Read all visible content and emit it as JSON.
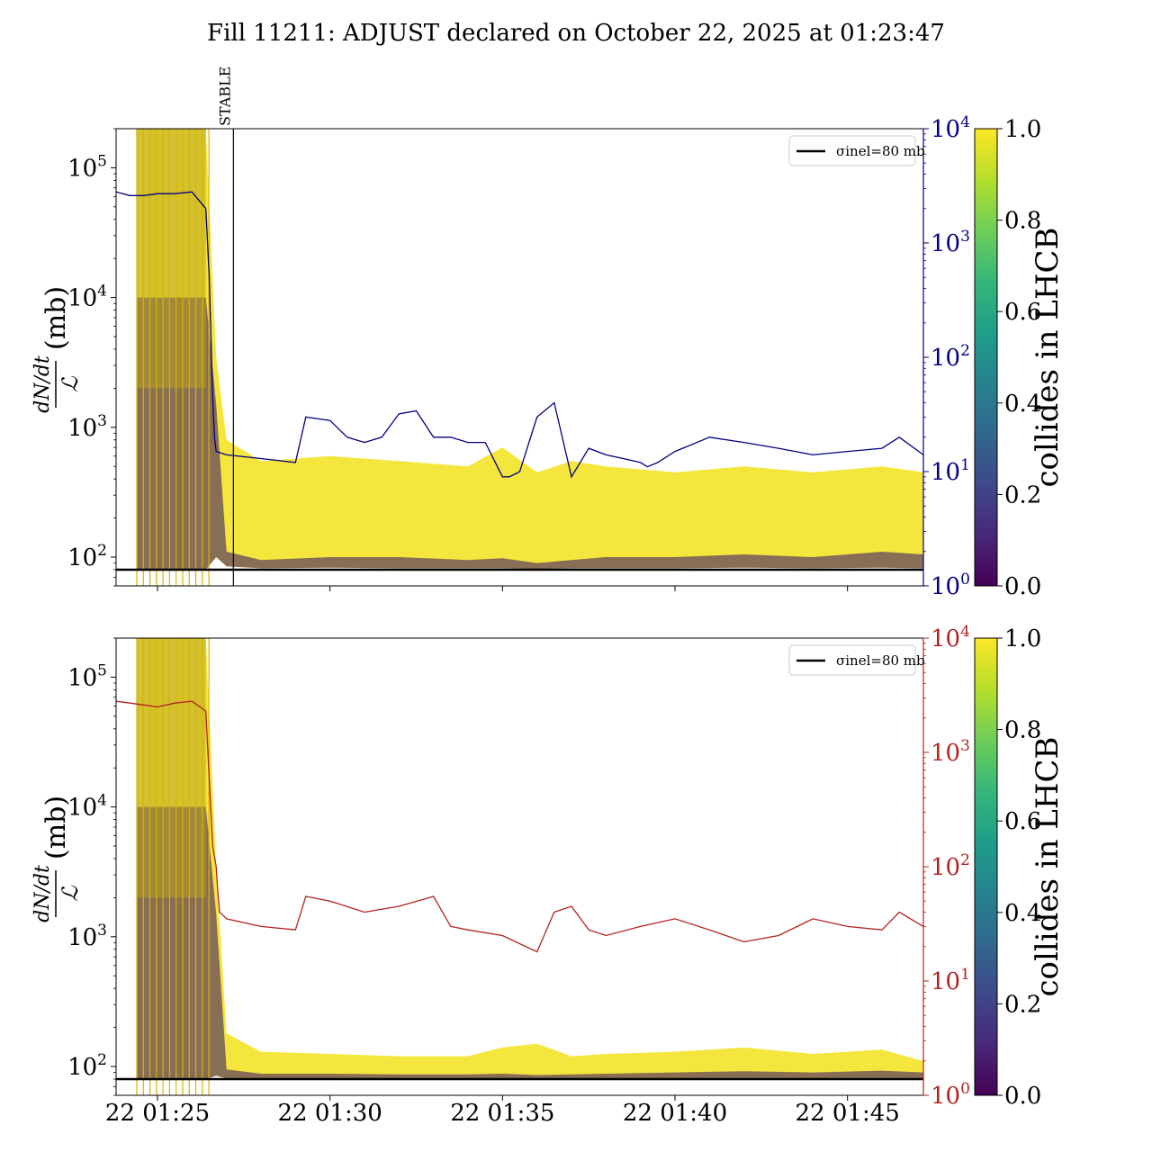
{
  "title": "Fill 11211: ADJUST declared on October 22, 2025 at 01:23:47",
  "colors": {
    "top_secondary": "#00007f",
    "bottom_secondary": "#b22222",
    "reference_line": "#000000",
    "viridis": [
      "#440154",
      "#482878",
      "#3e4989",
      "#31688e",
      "#26828e",
      "#1f9e89",
      "#35b779",
      "#6ece58",
      "#b5de2b",
      "#fde725"
    ]
  },
  "chart_data": [
    {
      "type": "line",
      "panel": "top",
      "ylabel_num": "dN/dt",
      "ylabel_den": "ℒ",
      "ylabel_unit": "(mb)",
      "y_scale": "log",
      "ylim": [
        60,
        200000
      ],
      "y_ticks": [
        {
          "base": "10",
          "exp": "2",
          "value": 100
        },
        {
          "base": "10",
          "exp": "3",
          "value": 1000
        },
        {
          "base": "10",
          "exp": "4",
          "value": 10000
        },
        {
          "base": "10",
          "exp": "5",
          "value": 100000
        }
      ],
      "x_range_minutes": [
        -1.2,
        22.2
      ],
      "x_tick_minutes": [
        0,
        5,
        10,
        15,
        20
      ],
      "y2_scale": "log",
      "y2lim": [
        1,
        10000
      ],
      "y2_ticks": [
        {
          "base": "10",
          "exp": "0",
          "value": 1
        },
        {
          "base": "10",
          "exp": "1",
          "value": 10
        },
        {
          "base": "10",
          "exp": "2",
          "value": 100
        },
        {
          "base": "10",
          "exp": "3",
          "value": 1000
        },
        {
          "base": "10",
          "exp": "4",
          "value": 10000
        }
      ],
      "y2_color": "#00007f",
      "legend": {
        "entry": "σinel=80 mb",
        "placement": "upper right"
      },
      "reference_line_mb": 80,
      "annotation": {
        "text": "STABLE",
        "x_minutes": 2.2
      },
      "secondary_series": {
        "x_minutes": [
          -1.2,
          -0.8,
          -0.4,
          0.0,
          0.5,
          1.0,
          1.4,
          1.5,
          1.6,
          1.65,
          1.7,
          2.0,
          3.0,
          4.0,
          4.3,
          5.0,
          5.5,
          6.0,
          6.5,
          7.0,
          7.5,
          8.0,
          8.5,
          9.0,
          9.5,
          10.0,
          10.2,
          10.5,
          11.0,
          11.5,
          12.0,
          12.5,
          13.0,
          13.5,
          14.0,
          14.2,
          14.5,
          15.0,
          16.0,
          17.0,
          18.0,
          19.0,
          20.0,
          21.0,
          21.5,
          22.2
        ],
        "values": [
          2800,
          2600,
          2600,
          2700,
          2700,
          2800,
          2000,
          500,
          45,
          20,
          15,
          14,
          13,
          12,
          30,
          28,
          20,
          18,
          20,
          32,
          34,
          20,
          20,
          18,
          18,
          9,
          9,
          10,
          30,
          40,
          9,
          16,
          14,
          13,
          12,
          11,
          12,
          15,
          20,
          18,
          16,
          14,
          15,
          16,
          20,
          14
        ]
      },
      "band": {
        "x_minutes": [
          -0.6,
          1.4,
          1.7,
          2.0,
          3.0,
          5.0,
          7.0,
          9.0,
          10.0,
          11.0,
          12.0,
          13.0,
          15.0,
          17.0,
          19.0,
          21.0,
          22.2
        ],
        "upper_mb": [
          200000,
          200000,
          3500,
          800,
          550,
          600,
          550,
          500,
          700,
          450,
          550,
          500,
          450,
          500,
          450,
          500,
          450
        ],
        "lower_mb": [
          80,
          80,
          100,
          85,
          82,
          83,
          82,
          82,
          82,
          81,
          82,
          82,
          82,
          83,
          82,
          83,
          82
        ],
        "dark_mb": [
          10000,
          10000,
          1500,
          110,
          95,
          100,
          100,
          95,
          98,
          90,
          95,
          100,
          100,
          105,
          100,
          110,
          105
        ]
      }
    },
    {
      "type": "line",
      "panel": "bottom",
      "ylabel_num": "dN/dt",
      "ylabel_den": "ℒ",
      "ylabel_unit": "(mb)",
      "y_scale": "log",
      "ylim": [
        60,
        200000
      ],
      "y_ticks": [
        {
          "base": "10",
          "exp": "2",
          "value": 100
        },
        {
          "base": "10",
          "exp": "3",
          "value": 1000
        },
        {
          "base": "10",
          "exp": "4",
          "value": 10000
        },
        {
          "base": "10",
          "exp": "5",
          "value": 100000
        }
      ],
      "x_range_minutes": [
        -1.2,
        22.2
      ],
      "x_tick_minutes": [
        0,
        5,
        10,
        15,
        20
      ],
      "x_tick_labels": [
        "22 01:25",
        "22 01:30",
        "22 01:35",
        "22 01:40",
        "22 01:45"
      ],
      "y2_scale": "log",
      "y2lim": [
        1,
        10000
      ],
      "y2_ticks": [
        {
          "base": "10",
          "exp": "0",
          "value": 1
        },
        {
          "base": "10",
          "exp": "1",
          "value": 10
        },
        {
          "base": "10",
          "exp": "2",
          "value": 100
        },
        {
          "base": "10",
          "exp": "3",
          "value": 1000
        },
        {
          "base": "10",
          "exp": "4",
          "value": 10000
        }
      ],
      "y2_color": "#b22222",
      "legend": {
        "entry": "σinel=80 mb",
        "placement": "upper right"
      },
      "reference_line_mb": 80,
      "secondary_series": {
        "x_minutes": [
          -1.2,
          -0.8,
          -0.4,
          0.0,
          0.5,
          1.0,
          1.4,
          1.6,
          1.7,
          1.75,
          1.8,
          2.0,
          3.0,
          4.0,
          4.3,
          5.0,
          6.0,
          7.0,
          8.0,
          8.5,
          9.0,
          10.0,
          11.0,
          11.5,
          12.0,
          12.5,
          13.0,
          14.0,
          15.0,
          16.0,
          17.0,
          18.0,
          19.0,
          20.0,
          21.0,
          21.5,
          22.2
        ],
        "values": [
          2800,
          2700,
          2600,
          2500,
          2700,
          2800,
          2300,
          150,
          100,
          60,
          40,
          35,
          30,
          28,
          55,
          50,
          40,
          45,
          55,
          30,
          28,
          25,
          18,
          40,
          45,
          28,
          25,
          30,
          35,
          28,
          22,
          25,
          35,
          30,
          28,
          40,
          30
        ]
      },
      "band": {
        "x_minutes": [
          -0.6,
          1.4,
          1.7,
          2.0,
          3.0,
          5.0,
          7.0,
          9.0,
          10.0,
          11.0,
          12.0,
          13.0,
          15.0,
          17.0,
          19.0,
          21.0,
          22.2
        ],
        "upper_mb": [
          200000,
          200000,
          3500,
          180,
          130,
          125,
          120,
          120,
          140,
          150,
          120,
          125,
          130,
          140,
          125,
          135,
          110
        ],
        "lower_mb": [
          80,
          80,
          85,
          81,
          80,
          80,
          80,
          80,
          81,
          80,
          80,
          80,
          80,
          81,
          80,
          81,
          80
        ],
        "dark_mb": [
          10000,
          10000,
          1500,
          95,
          88,
          88,
          87,
          87,
          88,
          86,
          87,
          88,
          90,
          92,
          90,
          93,
          90
        ]
      }
    }
  ],
  "colorbars": [
    {
      "label": "collides in LHCB",
      "range": [
        0.0,
        1.0
      ],
      "tick_labels": [
        "0.0",
        "0.2",
        "0.4",
        "0.6",
        "0.8",
        "1.0"
      ]
    },
    {
      "label": "collides in LHCB",
      "range": [
        0.0,
        1.0
      ],
      "tick_labels": [
        "0.0",
        "0.2",
        "0.4",
        "0.6",
        "0.8",
        "1.0"
      ]
    }
  ]
}
